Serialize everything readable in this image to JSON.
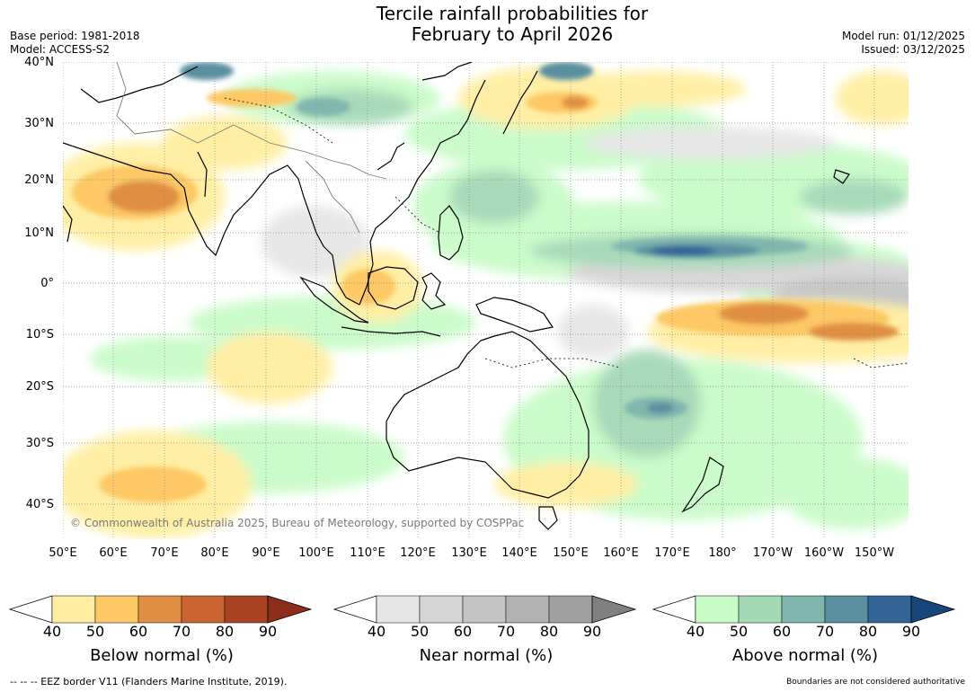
{
  "title": {
    "line1": "Tercile rainfall probabilities for",
    "line2": "February to April 2026"
  },
  "meta": {
    "base_period": "Base period: 1981-2018",
    "model": "Model: ACCESS-S2",
    "model_run": "Model run: 01/12/2025",
    "issued": "Issued: 03/12/2025"
  },
  "map": {
    "region": "Indian Ocean, Maritime Continent, Australia and western Pacific",
    "lat_labels": [
      "40°N",
      "30°N",
      "20°N",
      "10°N",
      "0°",
      "10°S",
      "20°S",
      "30°S",
      "40°S"
    ],
    "lon_labels": [
      "50°E",
      "60°E",
      "70°E",
      "80°E",
      "90°E",
      "100°E",
      "110°E",
      "120°E",
      "130°E",
      "140°E",
      "150°E",
      "160°E",
      "170°E",
      "180°",
      "170°W",
      "160°W",
      "150°W"
    ],
    "copyright": "© Commonwealth of Australia 2025, Bureau of Meteorology, supported by COSPPac"
  },
  "legend": {
    "below": {
      "title": "Below normal (%)",
      "ticks": [
        "40",
        "50",
        "60",
        "70",
        "80",
        "90"
      ],
      "colors": [
        "#ffffff",
        "#ffeea0",
        "#fdc865",
        "#e08f42",
        "#cb6430",
        "#a84220",
        "#8c2e1a"
      ]
    },
    "near": {
      "title": "Near normal (%)",
      "ticks": [
        "40",
        "50",
        "60",
        "70",
        "80",
        "90"
      ],
      "colors": [
        "#ffffff",
        "#e6e6e6",
        "#d5d5d5",
        "#c4c4c4",
        "#b2b2b2",
        "#a0a0a0",
        "#808080"
      ]
    },
    "above": {
      "title": "Above normal (%)",
      "ticks": [
        "40",
        "50",
        "60",
        "70",
        "80",
        "90"
      ],
      "colors": [
        "#ffffff",
        "#c9fbc9",
        "#a4d9b6",
        "#7fb6ad",
        "#5a8fa0",
        "#336597",
        "#17467a"
      ]
    }
  },
  "footer": {
    "eez": "--  --  -- EEZ border V11 (Flanders Marine Institute, 2019).",
    "disclaimer": "Boundaries are not considered authoritative"
  }
}
